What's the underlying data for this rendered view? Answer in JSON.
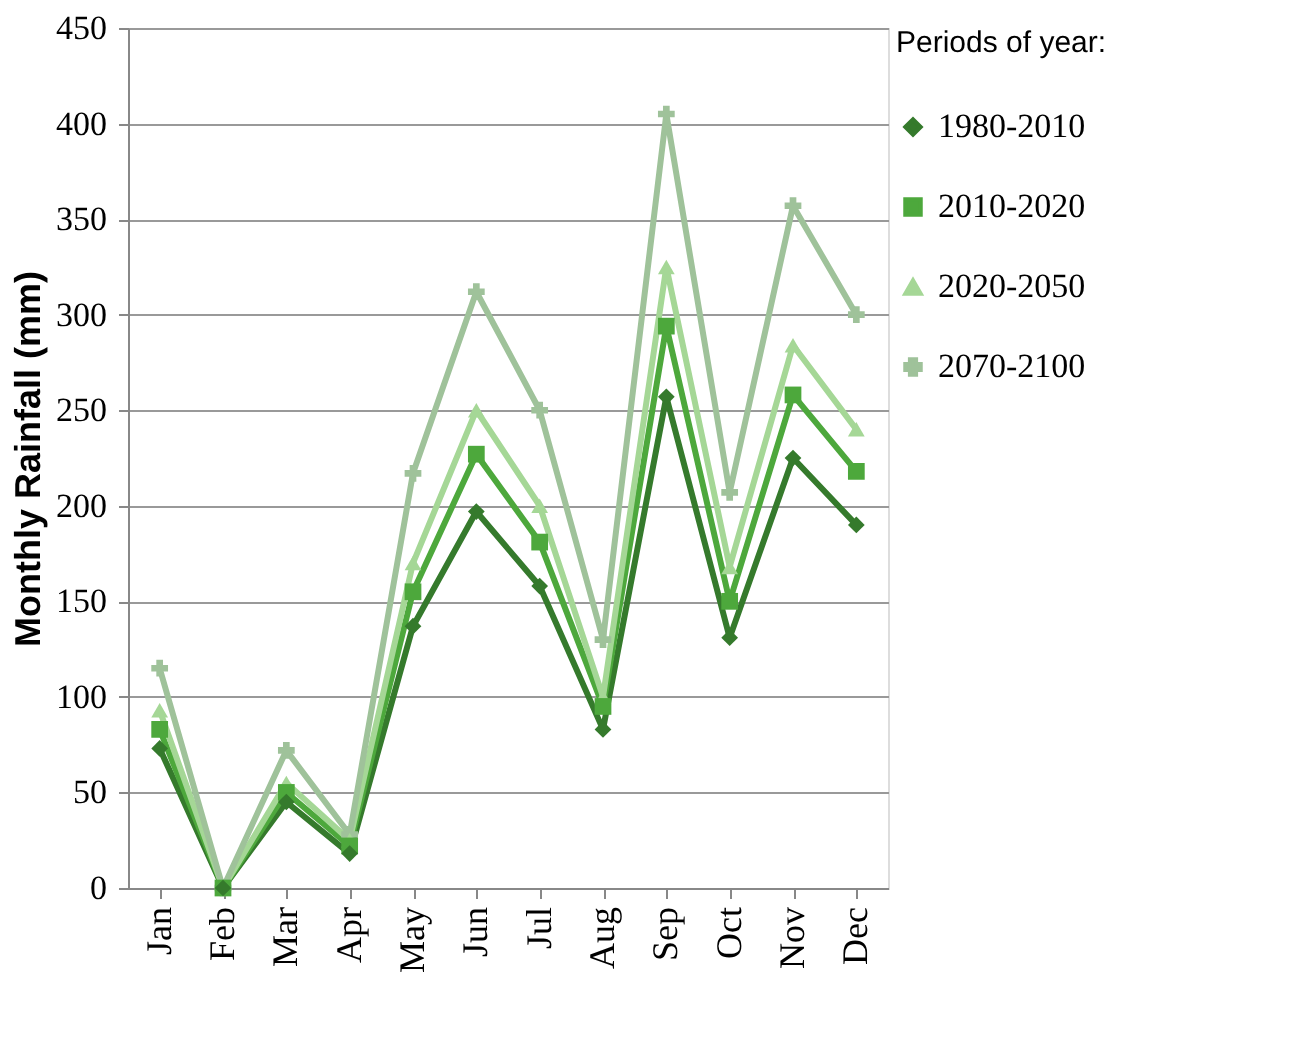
{
  "chart_data": {
    "type": "line",
    "ylabel": "Monthly Rainfall (mm)",
    "legend_title": "Periods of year:",
    "legend": "right",
    "grid": "y",
    "categories": [
      "Jan",
      "Feb",
      "Mar",
      "Apr",
      "May",
      "Jun",
      "Jul",
      "Aug",
      "Sep",
      "Oct",
      "Nov",
      "Dec"
    ],
    "ylim": [
      0,
      450
    ],
    "yticks": [
      0,
      50,
      100,
      150,
      200,
      250,
      300,
      350,
      400,
      450
    ],
    "series": [
      {
        "name": "1980-2010",
        "color": "#357a2c",
        "marker": "diamond",
        "values": [
          73,
          0,
          45,
          18,
          137,
          197,
          158,
          83,
          257,
          131,
          225,
          190
        ]
      },
      {
        "name": "2010-2020",
        "color": "#4da83c",
        "marker": "square",
        "values": [
          83,
          0,
          50,
          22,
          155,
          227,
          181,
          95,
          294,
          150,
          258,
          218
        ]
      },
      {
        "name": "2020-2050",
        "color": "#a5d796",
        "marker": "triangle",
        "values": [
          93,
          0,
          55,
          25,
          170,
          250,
          200,
          100,
          325,
          168,
          284,
          240
        ]
      },
      {
        "name": "2070-2100",
        "color": "#9fc29a",
        "marker": "cross",
        "values": [
          115,
          0,
          72,
          28,
          217,
          312,
          250,
          130,
          405,
          207,
          357,
          300
        ]
      }
    ]
  }
}
